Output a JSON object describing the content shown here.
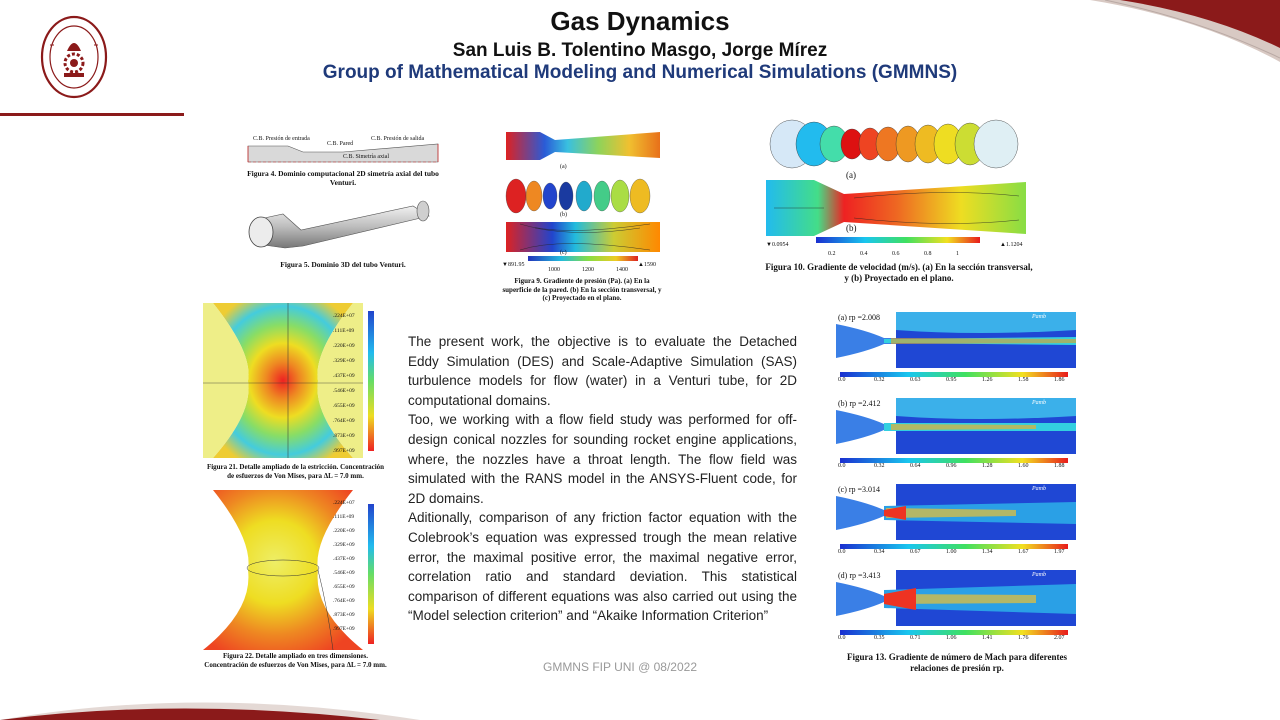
{
  "header": {
    "title": "Gas Dynamics",
    "authors": "San Luis B. Tolentino Masgo, Jorge Mírez",
    "group": "Group of Mathematical Modeling and Numerical Simulations (GMMNS)",
    "logo_text": "UNIVERSIDAD NACIONAL DE INGENIERÍA · LIMA 1876 PERÚ"
  },
  "figures": {
    "fig4": {
      "caption": "Figura 4. Dominio computacional 2D simetría axial del tubo Venturi.",
      "label_inlet": "C.B. Presión de entrada",
      "label_wall": "C.B. Pared",
      "label_outlet": "C.B. Presión de salida",
      "label_axis": "C.B. Simetría axial"
    },
    "fig5": {
      "caption": "Figura 5. Dominio 3D del tubo Venturi."
    },
    "fig9": {
      "caption": "Figura 9. Gradiente de presión (Pa). (a) En la superficie de la pared. (b) En la sección transversal, y (c) Proyectado en el plano.",
      "sub_a": "(a)",
      "sub_b": "(b)",
      "sub_c": "(c)",
      "min": "▼891.95",
      "max": "▲1590",
      "ticks": [
        "1000",
        "1200",
        "1400"
      ]
    },
    "fig10": {
      "caption": "Figura 10. Gradiente de velocidad (m/s). (a) En la sección transversal, y (b) Proyectado en el plano.",
      "sub_a": "(a)",
      "sub_b": "(b)",
      "min": "▼0.0954",
      "max": "▲1.1204",
      "ticks": [
        "0.2",
        "0.4",
        "0.6",
        "0.8",
        "1"
      ]
    },
    "fig21": {
      "caption": "Figura 21. Detalle ampliado de la estricción. Concentración de esfuerzos de Von Mises, para ΔL = 7.0 mm.",
      "scale": [
        ".224E+07",
        ".111E+09",
        ".220E+09",
        ".329E+09",
        ".437E+09",
        ".546E+09",
        ".655E+09",
        ".764E+09",
        ".873E+09",
        ".997E+09"
      ]
    },
    "fig22": {
      "caption": "Figura 22. Detalle ampliado en tres dimensiones. Concentración de esfuerzos de Von Mises, para ΔL = 7.0 mm.",
      "scale": [
        ".224E+07",
        ".111E+09",
        ".220E+09",
        ".329E+09",
        ".437E+09",
        ".546E+09",
        ".655E+09",
        ".764E+09",
        ".873E+09",
        ".997E+09"
      ]
    },
    "fig13": {
      "caption": "Figura 13. Gradiente de número de Mach para diferentes relaciones de presión rp.",
      "p_label": "Pamb",
      "panels": [
        {
          "label": "(a) rp =2.008",
          "ticks": [
            "0.0",
            "0.32",
            "0.63",
            "0.95",
            "1.26",
            "1.58",
            "1.86"
          ]
        },
        {
          "label": "(b) rp =2.412",
          "ticks": [
            "0.0",
            "0.32",
            "0.64",
            "0.96",
            "1.28",
            "1.60",
            "1.88"
          ]
        },
        {
          "label": "(c) rp =3.014",
          "ticks": [
            "0.0",
            "0.34",
            "0.67",
            "1.00",
            "1.34",
            "1.67",
            "1.97"
          ]
        },
        {
          "label": "(d) rp =3.413",
          "ticks": [
            "0.0",
            "0.35",
            "0.71",
            "1.06",
            "1.41",
            "1.76",
            "2.07"
          ]
        }
      ]
    }
  },
  "body": {
    "p1": "The present work, the objective is to evaluate the Detached Eddy Simulation (DES) and Scale-Adaptive Simulation (SAS) turbulence models for flow (water) in a Venturi tube, for 2D computational domains.",
    "p2": "Too, we working with a flow field study was performed for off-design conical nozzles for sounding rocket engine applications, where, the nozzles have a throat length. The flow field was simulated with the RANS model in the ANSYS-Fluent code, for 2D domains.",
    "p3": "Aditionally, comparison of any friction factor equation with the Colebrook’s equation was expressed trough the mean relative error, the maximal positive error, the maximal negative error, correlation ratio and standard deviation. This statistical comparison of different equations was also carried out using the “Model selection criterion” and “Akaike Information Criterion”"
  },
  "footer": {
    "text": "GMMNS FIP UNI @ 08/2022"
  },
  "colors": {
    "accent": "#8b1a1a",
    "title_blue": "#1f3a7a"
  }
}
